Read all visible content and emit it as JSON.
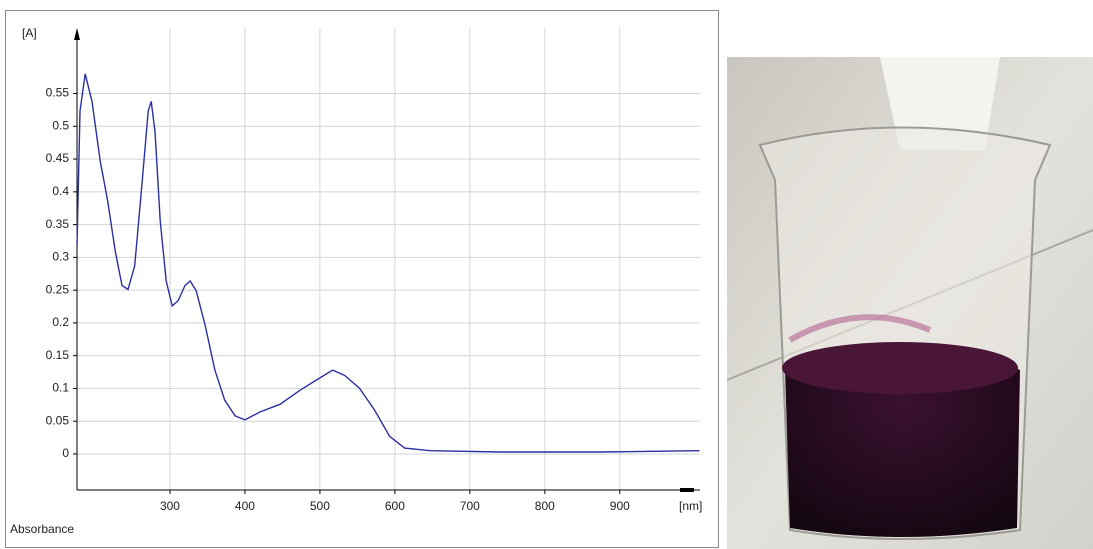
{
  "chart_data": {
    "type": "line",
    "y_label": "[A]",
    "x_label": "[nm]",
    "y_title": "Absorbance",
    "xlim": [
      176,
      1007
    ],
    "ylim": [
      -0.055,
      0.65
    ],
    "xticks": [
      300,
      400,
      500,
      600,
      700,
      800,
      900
    ],
    "yticks": [
      0,
      0.05,
      0.1,
      0.15,
      0.2,
      0.25,
      0.3,
      0.35,
      0.4,
      0.45,
      0.5,
      0.55
    ],
    "grid": true,
    "series": [
      {
        "color": "#2b2fa0",
        "x": [
          176,
          180,
          187,
          196,
          207,
          217,
          227,
          236,
          244,
          253,
          263,
          271,
          275,
          280,
          287,
          295,
          303,
          311,
          320,
          327,
          335,
          347,
          360,
          373,
          387,
          400,
          420,
          447,
          473,
          500,
          517,
          533,
          553,
          573,
          593,
          613,
          647,
          740,
          873,
          1006
        ],
        "values": [
          0.318,
          0.523,
          0.58,
          0.538,
          0.447,
          0.386,
          0.31,
          0.257,
          0.251,
          0.287,
          0.416,
          0.523,
          0.538,
          0.492,
          0.356,
          0.264,
          0.226,
          0.234,
          0.257,
          0.264,
          0.249,
          0.196,
          0.128,
          0.082,
          0.058,
          0.052,
          0.064,
          0.076,
          0.097,
          0.116,
          0.128,
          0.12,
          0.1,
          0.067,
          0.027,
          0.009,
          0.005,
          0.003,
          0.003,
          0.005
        ]
      }
    ]
  }
}
